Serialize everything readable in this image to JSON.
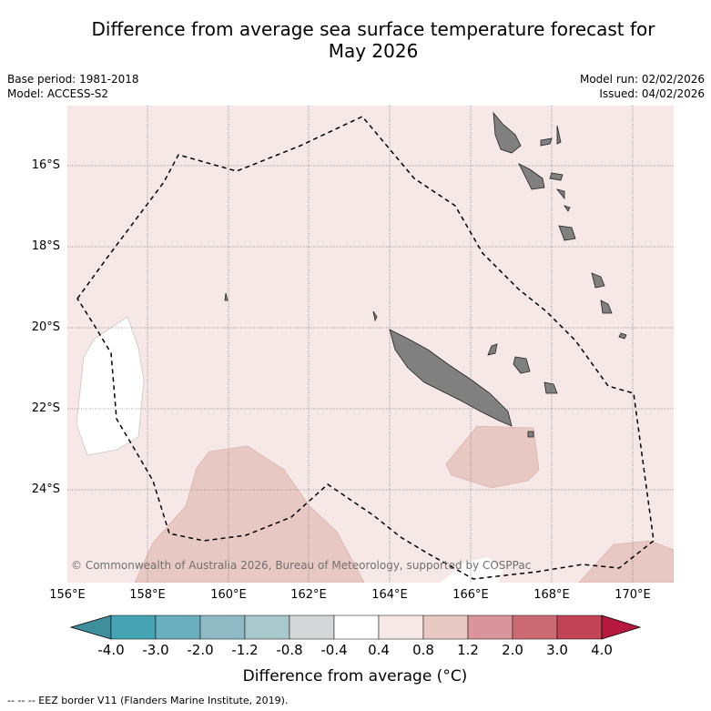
{
  "title_line1": "Difference from average sea surface temperature forecast for",
  "title_line2": "May 2026",
  "base_period": "Base period: 1981-2018",
  "model": "Model: ACCESS-S2",
  "model_run": "Model run: 02/02/2026",
  "issued": "Issued: 04/02/2026",
  "copyright": "© Commonwealth of Australia 2026, Bureau of Meteorology, supported by COSPPac",
  "lat_labels": [
    "16°S",
    "18°S",
    "20°S",
    "22°S",
    "24°S"
  ],
  "lon_labels": [
    "156°E",
    "158°E",
    "160°E",
    "162°E",
    "164°E",
    "166°E",
    "168°E",
    "170°E"
  ],
  "colorbar": {
    "tick_labels": [
      "-4.0",
      "-3.0",
      "-2.0",
      "-1.2",
      "-0.8",
      "-0.4",
      "0.4",
      "0.8",
      "1.2",
      "2.0",
      "3.0",
      "4.0"
    ],
    "colors": [
      "#3e8e9c",
      "#45a3b3",
      "#6aafbd",
      "#8fbac4",
      "#a9c8cc",
      "#d3d7d7",
      "#ffffff",
      "#f5e8e6",
      "#e8c8c3",
      "#d9959b",
      "#cc6a74",
      "#c14557",
      "#b5193d"
    ],
    "title": "Difference from average (",
    "title_unit": "°C)"
  },
  "legend_footer": "--  --  -- EEZ border V11 (Flanders Marine Institute, 2019)."
}
